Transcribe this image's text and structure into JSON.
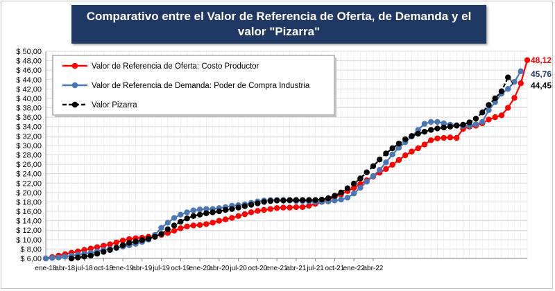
{
  "chart_data": {
    "type": "line",
    "title": "Comparativo entre el Valor de Referencia de Oferta, de Demanda y el valor \"Pizarra\"",
    "xlabel": "",
    "ylabel": "",
    "ylim": [
      6,
      50
    ],
    "y_ticks": [
      "$ 6,00",
      "$ 8,00",
      "$ 10,00",
      "$ 12,00",
      "$ 14,00",
      "$ 16,00",
      "$ 18,00",
      "$ 20,00",
      "$ 22,00",
      "$ 24,00",
      "$ 26,00",
      "$ 28,00",
      "$ 30,00",
      "$ 32,00",
      "$ 34,00",
      "$ 36,00",
      "$ 38,00",
      "$ 40,00",
      "$ 42,00",
      "$ 44,00",
      "$ 46,00",
      "$ 48,00",
      "$ 50,00"
    ],
    "x_ticks": [
      "ene-18",
      "abr-18",
      "jul-18",
      "oct-18",
      "ene-19",
      "abr-19",
      "jul-19",
      "oct-19",
      "ene-20",
      "abr-20",
      "jul-20",
      "oct-20",
      "ene-21",
      "abr-21",
      "jul-21",
      "oct-21",
      "ene-22",
      "abr-22"
    ],
    "grid": true,
    "legend_position": "top-left",
    "series": [
      {
        "name": "Valor de Referencia de Oferta: Costo Productor",
        "color": "#ff0000",
        "values": [
          6.0,
          6.3,
          6.6,
          6.9,
          7.2,
          7.5,
          7.8,
          8.1,
          8.4,
          8.7,
          9.0,
          9.4,
          9.8,
          10.1,
          10.3,
          10.4,
          10.6,
          10.8,
          11.0,
          11.4,
          11.9,
          12.4,
          12.8,
          13.0,
          13.1,
          13.3,
          13.6,
          14.0,
          14.3,
          14.6,
          15.0,
          15.4,
          15.8,
          16.1,
          16.3,
          16.5,
          16.7,
          16.8,
          16.8,
          16.9,
          16.9,
          17.2,
          17.6,
          18.0,
          18.5,
          19.0,
          19.6,
          20.3,
          21.0,
          21.8,
          22.6,
          23.4,
          24.2,
          25.0,
          25.9,
          26.9,
          27.9,
          28.7,
          29.4,
          30.2,
          31.1,
          31.5,
          31.6,
          31.7,
          31.6,
          33.5,
          34.0,
          34.2,
          34.7,
          35.5,
          36.0,
          36.4,
          38.0,
          40.1,
          43.2,
          48.12
        ],
        "end_label": "48,12"
      },
      {
        "name": "Valor de Referencia de Demanda: Poder de Compra Industria",
        "color": "#4a77b4",
        "values": [
          6.0,
          6.1,
          6.2,
          6.4,
          6.6,
          6.8,
          7.0,
          7.2,
          7.5,
          7.8,
          8.0,
          8.2,
          8.5,
          8.8,
          9.1,
          9.5,
          10.0,
          11.0,
          12.5,
          13.6,
          14.6,
          15.3,
          15.8,
          16.2,
          16.4,
          16.5,
          16.5,
          16.7,
          16.9,
          17.2,
          17.3,
          17.5,
          17.8,
          18.1,
          18.3,
          18.4,
          18.4,
          18.4,
          18.3,
          18.2,
          18.2,
          18.1,
          18.0,
          18.0,
          18.1,
          18.3,
          18.5,
          18.9,
          19.8,
          21.0,
          22.3,
          23.5,
          24.8,
          26.4,
          28.1,
          29.5,
          30.7,
          31.9,
          33.3,
          34.6,
          35.0,
          35.0,
          34.7,
          34.4,
          34.3,
          34.1,
          34.2,
          34.5,
          35.0,
          37.5,
          39.2,
          41.0,
          42.0,
          43.5,
          45.76
        ],
        "end_label": "45,76"
      },
      {
        "name": "Valor Pizarra",
        "color": "#000000",
        "values": [
          null,
          null,
          null,
          null,
          6.0,
          6.2,
          6.4,
          6.6,
          7.0,
          7.4,
          7.8,
          8.3,
          8.8,
          9.3,
          9.6,
          9.9,
          10.2,
          10.6,
          11.2,
          12.2,
          13.0,
          13.8,
          14.5,
          15.0,
          15.3,
          15.6,
          15.8,
          16.0,
          16.3,
          16.5,
          16.8,
          17.1,
          17.4,
          17.7,
          18.0,
          18.2,
          18.3,
          18.3,
          18.4,
          18.4,
          18.4,
          18.4,
          18.4,
          18.5,
          18.8,
          19.3,
          20.0,
          20.9,
          21.9,
          23.0,
          24.3,
          25.6,
          27.0,
          28.3,
          29.4,
          30.4,
          31.3,
          32.0,
          32.5,
          32.9,
          33.3,
          33.6,
          33.8,
          34.0,
          34.2,
          34.4,
          34.9,
          35.7,
          37.0,
          38.6,
          40.0,
          41.5,
          44.45
        ],
        "end_label": "44,45"
      }
    ]
  }
}
